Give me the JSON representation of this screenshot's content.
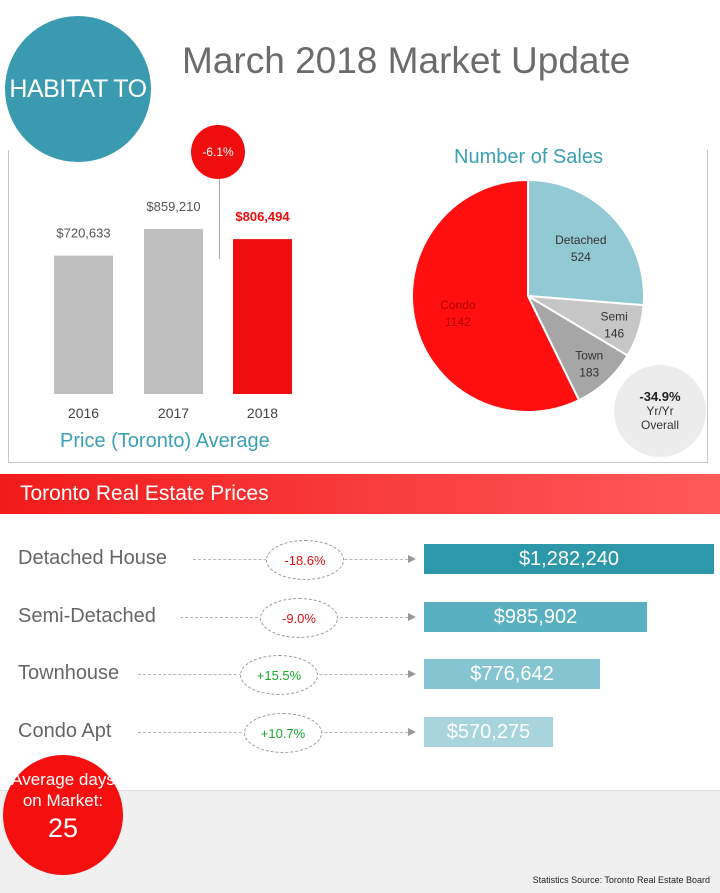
{
  "logo": "HABITAT TO",
  "title": "March 2018 Market Update",
  "colors": {
    "brand": "#3a9bb0",
    "accent_red": "#f00d0d",
    "bar_gray": "#bfbfbf",
    "positive": "#1aaa2a",
    "negative": "#e01010"
  },
  "price_chart": {
    "type": "bar",
    "categories": [
      "2016",
      "2017",
      "2018"
    ],
    "values": [
      720633,
      859210,
      806494
    ],
    "labels": [
      "$720,633",
      "$859,210",
      "$806,494"
    ],
    "highlight_index": 2,
    "change_label": "-6.1%",
    "xlabel": "Price (Toronto) Average"
  },
  "sales_chart": {
    "type": "pie",
    "title": "Number of Sales",
    "slices": [
      {
        "name": "Detached",
        "value": 524,
        "color": "#92c9d4"
      },
      {
        "name": "Semi",
        "value": 146,
        "color": "#c6c6c6"
      },
      {
        "name": "Town",
        "value": 183,
        "color": "#a6a6a6"
      },
      {
        "name": "Condo",
        "value": 1142,
        "color": "#ff0f0f"
      }
    ],
    "yoy_value": "-34.9%",
    "yoy_line1": "Yr/Yr",
    "yoy_line2": "Overall"
  },
  "chart_data": [
    {
      "type": "bar",
      "categories": [
        "2016",
        "2017",
        "2018"
      ],
      "values": [
        720633,
        859210,
        806494
      ],
      "xlabel": "Price (Toronto) Average"
    },
    {
      "type": "pie",
      "title": "Number of Sales",
      "categories": [
        "Detached",
        "Semi",
        "Town",
        "Condo"
      ],
      "values": [
        524,
        146,
        183,
        1142
      ]
    },
    {
      "type": "bar",
      "title": "Toronto Real Estate Prices",
      "categories": [
        "Detached House",
        "Semi-Detached",
        "Townhouse",
        "Condo Apt"
      ],
      "values": [
        1282240,
        985902,
        776642,
        570275
      ],
      "changes": [
        "-18.6%",
        "-9.0%",
        "+15.5%",
        "+10.7%"
      ]
    }
  ],
  "prices_section": {
    "title": "Toronto Real Estate Prices",
    "rows": [
      {
        "label": "Detached House",
        "change": "-18.6%",
        "price": "$1,282,240",
        "value": 1282240,
        "positive": false,
        "color": "#2e98ab"
      },
      {
        "label": "Semi-Detached",
        "change": "-9.0%",
        "price": "$985,902",
        "value": 985902,
        "positive": false,
        "color": "#59b0c0"
      },
      {
        "label": "Townhouse",
        "change": "+15.5%",
        "price": "$776,642",
        "value": 776642,
        "positive": true,
        "color": "#85c5d1"
      },
      {
        "label": "Condo Apt",
        "change": "+10.7%",
        "price": "$570,275",
        "value": 570275,
        "positive": true,
        "color": "#a8d5dd"
      }
    ]
  },
  "days_on_market": {
    "label": "Average days on Market:",
    "value": "25"
  },
  "source": "Statistics Source: Toronto Real Estate Board"
}
